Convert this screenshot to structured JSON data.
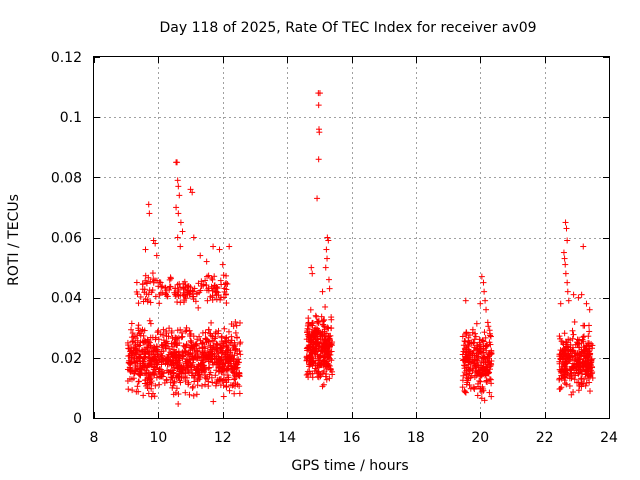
{
  "chart_data": {
    "type": "scatter",
    "title": "Day 118 of 2025, Rate Of TEC Index for receiver av09",
    "xlabel": "GPS time / hours",
    "ylabel": "ROTI / TECUs",
    "xlim": [
      8,
      24
    ],
    "ylim": [
      0,
      0.12
    ],
    "x_ticks": [
      8,
      10,
      12,
      14,
      16,
      18,
      20,
      22,
      24
    ],
    "y_ticks": [
      0,
      0.02,
      0.04,
      0.06,
      0.08,
      0.1,
      0.12
    ],
    "x_tick_labels": [
      "8",
      "10",
      "12",
      "14",
      "16",
      "18",
      "20",
      "22",
      "24"
    ],
    "y_tick_labels": [
      "0",
      "0.02",
      "0.04",
      "0.06",
      "0.08",
      "0.1",
      "0.12"
    ],
    "grid": true,
    "marker": "+",
    "color": "#ff0000",
    "clusters": [
      {
        "x_range": [
          9.05,
          12.55
        ],
        "y_range": [
          0.004,
          0.035
        ],
        "count": 900
      },
      {
        "x_range": [
          9.3,
          12.2
        ],
        "y_range": [
          0.035,
          0.05
        ],
        "count": 160
      },
      {
        "x_range": [
          14.6,
          15.4
        ],
        "y_range": [
          0.007,
          0.04
        ],
        "count": 320
      },
      {
        "x_range": [
          19.45,
          20.35
        ],
        "y_range": [
          0.004,
          0.034
        ],
        "count": 260
      },
      {
        "x_range": [
          22.45,
          23.5
        ],
        "y_range": [
          0.005,
          0.033
        ],
        "count": 320
      }
    ],
    "outliers": [
      {
        "x": 9.7,
        "y": 0.071
      },
      {
        "x": 9.72,
        "y": 0.068
      },
      {
        "x": 9.85,
        "y": 0.059
      },
      {
        "x": 9.9,
        "y": 0.058
      },
      {
        "x": 9.95,
        "y": 0.054
      },
      {
        "x": 9.6,
        "y": 0.056
      },
      {
        "x": 10.55,
        "y": 0.085
      },
      {
        "x": 10.58,
        "y": 0.085
      },
      {
        "x": 10.6,
        "y": 0.079
      },
      {
        "x": 10.62,
        "y": 0.077
      },
      {
        "x": 10.65,
        "y": 0.074
      },
      {
        "x": 10.55,
        "y": 0.07
      },
      {
        "x": 10.62,
        "y": 0.068
      },
      {
        "x": 10.7,
        "y": 0.065
      },
      {
        "x": 10.75,
        "y": 0.062
      },
      {
        "x": 10.6,
        "y": 0.06
      },
      {
        "x": 10.68,
        "y": 0.057
      },
      {
        "x": 11.0,
        "y": 0.076
      },
      {
        "x": 11.05,
        "y": 0.075
      },
      {
        "x": 11.1,
        "y": 0.06
      },
      {
        "x": 11.7,
        "y": 0.057
      },
      {
        "x": 11.9,
        "y": 0.056
      },
      {
        "x": 12.2,
        "y": 0.057
      },
      {
        "x": 11.5,
        "y": 0.052
      },
      {
        "x": 11.3,
        "y": 0.054
      },
      {
        "x": 12.0,
        "y": 0.051
      },
      {
        "x": 14.97,
        "y": 0.108
      },
      {
        "x": 15.02,
        "y": 0.108
      },
      {
        "x": 14.98,
        "y": 0.104
      },
      {
        "x": 14.99,
        "y": 0.096
      },
      {
        "x": 15.0,
        "y": 0.095
      },
      {
        "x": 14.98,
        "y": 0.086
      },
      {
        "x": 14.93,
        "y": 0.073
      },
      {
        "x": 15.25,
        "y": 0.06
      },
      {
        "x": 15.28,
        "y": 0.059
      },
      {
        "x": 15.22,
        "y": 0.056
      },
      {
        "x": 15.24,
        "y": 0.053
      },
      {
        "x": 15.2,
        "y": 0.05
      },
      {
        "x": 14.75,
        "y": 0.05
      },
      {
        "x": 14.78,
        "y": 0.048
      },
      {
        "x": 15.3,
        "y": 0.046
      },
      {
        "x": 15.32,
        "y": 0.043
      },
      {
        "x": 15.1,
        "y": 0.042
      },
      {
        "x": 19.55,
        "y": 0.039
      },
      {
        "x": 20.05,
        "y": 0.047
      },
      {
        "x": 20.1,
        "y": 0.045
      },
      {
        "x": 20.12,
        "y": 0.042
      },
      {
        "x": 20.15,
        "y": 0.039
      },
      {
        "x": 20.0,
        "y": 0.038
      },
      {
        "x": 20.18,
        "y": 0.036
      },
      {
        "x": 22.65,
        "y": 0.065
      },
      {
        "x": 22.68,
        "y": 0.063
      },
      {
        "x": 22.7,
        "y": 0.059
      },
      {
        "x": 22.6,
        "y": 0.055
      },
      {
        "x": 22.62,
        "y": 0.053
      },
      {
        "x": 22.64,
        "y": 0.051
      },
      {
        "x": 22.66,
        "y": 0.048
      },
      {
        "x": 22.7,
        "y": 0.045
      },
      {
        "x": 22.72,
        "y": 0.042
      },
      {
        "x": 22.75,
        "y": 0.039
      },
      {
        "x": 23.2,
        "y": 0.057
      },
      {
        "x": 23.15,
        "y": 0.041
      },
      {
        "x": 23.05,
        "y": 0.04
      },
      {
        "x": 22.9,
        "y": 0.041
      },
      {
        "x": 23.3,
        "y": 0.038
      },
      {
        "x": 23.4,
        "y": 0.036
      },
      {
        "x": 22.5,
        "y": 0.038
      }
    ]
  }
}
